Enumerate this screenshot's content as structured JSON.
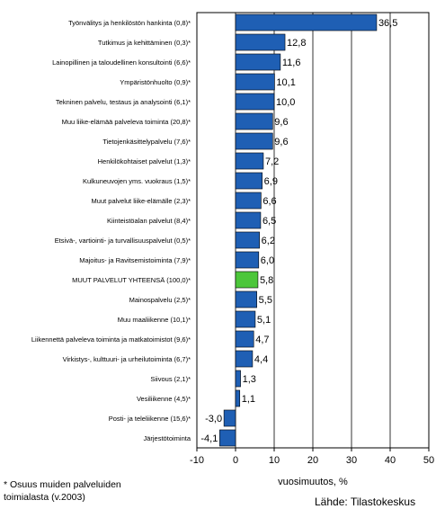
{
  "chart_data": {
    "type": "bar",
    "orientation": "horizontal",
    "categories": [
      "Työnvälitys ja henkilöstön hankinta (0,8)*",
      "Tutkimus ja kehittäminen (0,3)*",
      "Lainopillinen ja taloudellinen konsultointi (6,6)*",
      "Ympäristönhuolto (0,9)*",
      "Tekninen palvelu, testaus ja analysointi (6,1)*",
      "Muu liike-elämää palveleva toiminta (20,8)*",
      "Tietojenkäsittelypalvelu (7,6)*",
      "Henkilökohtaiset palvelut (1,3)*",
      "Kulkuneuvojen yms. vuokraus (1,5)*",
      "Muut palvelut liike-elämälle (2,3)*",
      "Kiinteistöalan palvelut (8,4)*",
      "Etsivä-, vartiointi- ja turvallisuuspalvelut (0,5)*",
      "Majoitus- ja Ravitsemistoiminta (7,9)*",
      "MUUT PALVELUT YHTEENSÄ (100,0)*",
      "Mainospalvelu (2,5)*",
      "Muu maaliikenne (10,1)*",
      "Liikennettä palveleva toiminta ja matkatoimistot (9,6)*",
      "Virkistys-, kulttuuri- ja urheilutoiminta (6,7)*",
      "Siivous (2,1)*",
      "Vesiliikenne (4,5)*",
      "Posti- ja teleliikenne (15,6)*",
      "Järjestötoiminta"
    ],
    "values": [
      36.5,
      12.8,
      11.6,
      10.1,
      10.0,
      9.6,
      9.6,
      7.2,
      6.9,
      6.6,
      6.5,
      6.2,
      6.0,
      5.8,
      5.5,
      5.1,
      4.7,
      4.4,
      1.3,
      1.1,
      -3.0,
      -4.1
    ],
    "value_labels": [
      "36,5",
      "12,8",
      "11,6",
      "10,1",
      "10,0",
      "9,6",
      "9,6",
      "7,2",
      "6,9",
      "6,6",
      "6,5",
      "6,2",
      "6,0",
      "5,8",
      "5,5",
      "5,1",
      "4,7",
      "4,4",
      "1,3",
      "1,1",
      "-3,0",
      "-4,1"
    ],
    "highlight_index": 13,
    "bar_color": "#1f5fb4",
    "highlight_color": "#4cc63a",
    "xlim": [
      -10,
      50
    ],
    "xticks": [
      -10,
      0,
      10,
      20,
      30,
      40,
      50
    ],
    "xlabel": "vuosimuutos, %",
    "ylabel": "",
    "title": "",
    "grid": "vertical",
    "legend": "none"
  },
  "footnote": {
    "line1": "* Osuus muiden palveluiden",
    "line2": "toimialasta (v.2003)"
  },
  "source": "Lähde: Tilastokeskus"
}
